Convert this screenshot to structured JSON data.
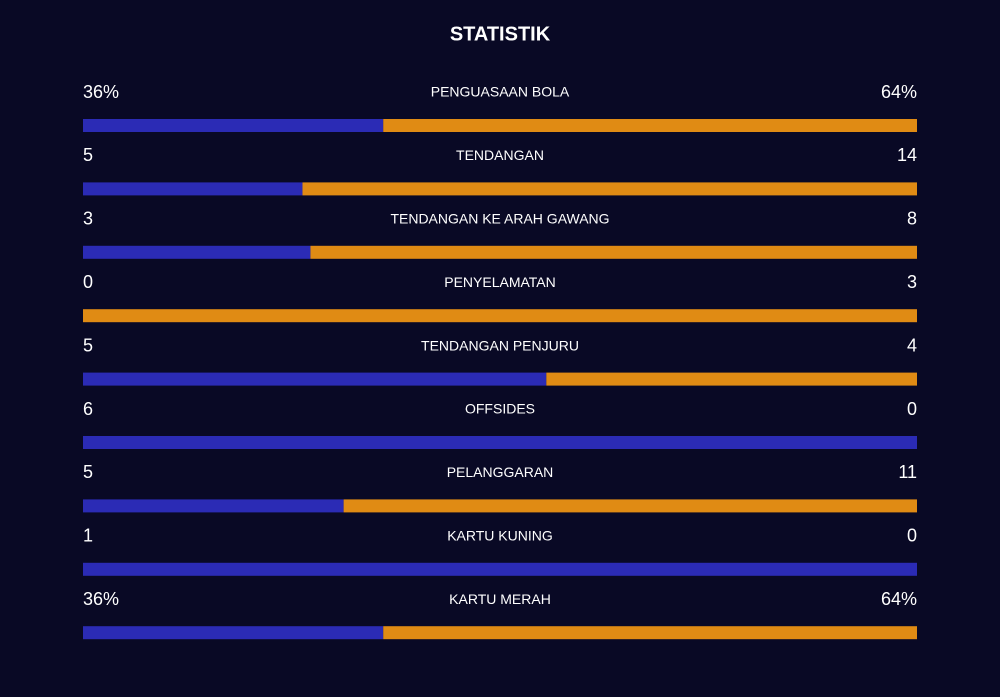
{
  "header": {
    "title": "STATISTIK"
  },
  "colors": {
    "home": "#2b2bb5",
    "away": "#e08b14"
  },
  "stats": [
    {
      "label": "PENGUASAAN BOLA",
      "values": [
        36,
        64
      ],
      "value_labels": [
        "36%",
        "64%"
      ]
    },
    {
      "label": "TENDANGAN",
      "values": [
        5,
        14
      ]
    },
    {
      "label": "TENDANGAN KE ARAH GAWANG",
      "values": [
        3,
        8
      ]
    },
    {
      "label": "PENYELAMATAN",
      "values": [
        0,
        3
      ]
    },
    {
      "label": "TENDANGAN PENJURU",
      "values": [
        5,
        4
      ]
    },
    {
      "label": "OFFSIDES",
      "values": [
        6,
        0
      ]
    },
    {
      "label": "PELANGGARAN",
      "values": [
        5,
        11
      ]
    },
    {
      "label": "KARTU KUNING",
      "values": [
        1,
        0
      ]
    },
    {
      "label": "KARTU MERAH",
      "values": [
        36,
        64
      ],
      "value_labels": [
        "36%",
        "64%"
      ]
    }
  ]
}
